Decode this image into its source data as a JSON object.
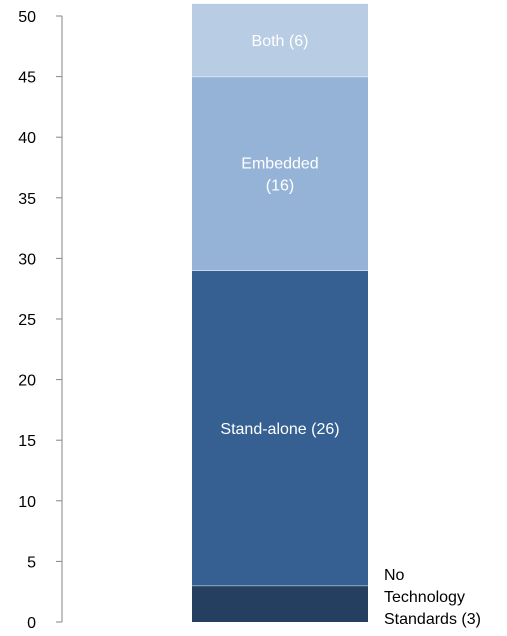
{
  "chart_data": {
    "type": "bar",
    "stacked": true,
    "categories": [
      ""
    ],
    "ylim": [
      0,
      50
    ],
    "y_ticks": [
      0,
      5,
      10,
      15,
      20,
      25,
      30,
      35,
      40,
      45,
      50
    ],
    "grid": false,
    "title": "",
    "xlabel": "",
    "ylabel": "",
    "series": [
      {
        "values": [
          3
        ],
        "label_lines": [
          "No",
          "Technology",
          "Standards (3)"
        ],
        "label_position": "outside-right",
        "color": "#243F60",
        "label_color": "#000000"
      },
      {
        "values": [
          26
        ],
        "label_lines": [
          "Stand-alone (26)"
        ],
        "label_position": "inside",
        "color": "#366092",
        "label_color": "#ffffff"
      },
      {
        "values": [
          16
        ],
        "label_lines": [
          "Embedded",
          "(16)"
        ],
        "label_position": "inside",
        "color": "#95B3D7",
        "label_color": "#ffffff"
      },
      {
        "values": [
          6
        ],
        "label_lines": [
          "Both (6)"
        ],
        "label_position": "inside",
        "color": "#B8CCE4",
        "label_color": "#ffffff"
      }
    ]
  }
}
